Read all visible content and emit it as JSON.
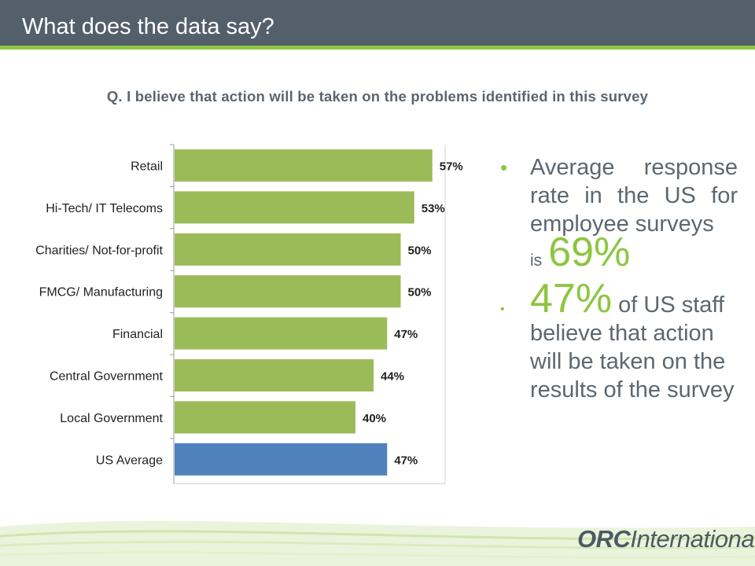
{
  "header": {
    "title": "What does the data say?"
  },
  "question": "Q. I believe that action will be taken on the problems identified in this survey",
  "colors": {
    "header_bg": "#535f6b",
    "accent_green": "#8dc63f",
    "bar_green": "#9bbb59",
    "bar_blue": "#4f81bd"
  },
  "chart_data": {
    "type": "bar",
    "orientation": "horizontal",
    "categories": [
      "Retail",
      "Hi-Tech/ IT Telecoms",
      "Charities/ Not-for-profit",
      "FMCG/ Manufacturing",
      "Financial",
      "Central Government",
      "Local Government",
      "US Average"
    ],
    "values": [
      57,
      53,
      50,
      50,
      47,
      44,
      40,
      47
    ],
    "value_labels": [
      "57%",
      "53%",
      "50%",
      "50%",
      "47%",
      "44%",
      "40%",
      "47%"
    ],
    "bar_colors": [
      "#9bbb59",
      "#9bbb59",
      "#9bbb59",
      "#9bbb59",
      "#9bbb59",
      "#9bbb59",
      "#9bbb59",
      "#4f81bd"
    ],
    "xlim": [
      0,
      100
    ],
    "grid": false
  },
  "bullets": {
    "b1_text": "Average response rate in the US for employee surveys",
    "b1_is": "is",
    "b1_value": "69%",
    "b2_value": "47%",
    "b2_text": "of US staff believe that action will be taken on the results of the survey"
  },
  "logo": {
    "bold": "ORC",
    "rest": "International"
  }
}
